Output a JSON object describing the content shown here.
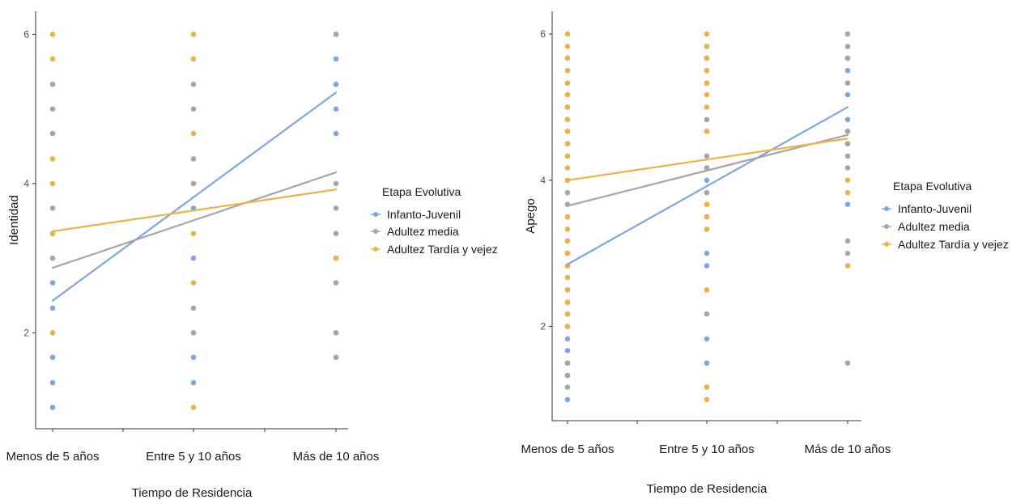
{
  "chart_data": [
    {
      "type": "scatter",
      "ylabel": "Identidad",
      "xlabel": "Tiempo de Residencia",
      "categories": [
        "Menos de 5 años",
        "Entre 5 y 10 años",
        "Más de 10 años"
      ],
      "yticks": [
        2,
        4,
        6
      ],
      "ylim": [
        0.8,
        6.2
      ],
      "grid": false,
      "legend": {
        "title": "Etapa Evolutiva",
        "placement": "right",
        "entries": [
          "Infanto-Juvenil",
          "Adultez media",
          "Adultez Tardía y vejez"
        ]
      },
      "series": [
        {
          "name": "Infanto-Juvenil",
          "color": "#7ea6e0",
          "points": [
            [
              1,
              1.0
            ],
            [
              1,
              1.33
            ],
            [
              1,
              1.67
            ],
            [
              1,
              2.33
            ],
            [
              1,
              2.67
            ],
            [
              2,
              1.33
            ],
            [
              2,
              1.67
            ],
            [
              2,
              3.0
            ],
            [
              2,
              3.67
            ],
            [
              3,
              4.67
            ],
            [
              3,
              5.0
            ],
            [
              3,
              5.33
            ],
            [
              3,
              5.67
            ],
            [
              3,
              6.0
            ]
          ],
          "trend": [
            2.43,
            5.22
          ]
        },
        {
          "name": "Adultez media",
          "color": "#a6a6a6",
          "points": [
            [
              1,
              3.0
            ],
            [
              1,
              3.33
            ],
            [
              1,
              3.67
            ],
            [
              1,
              4.67
            ],
            [
              1,
              5.0
            ],
            [
              1,
              5.33
            ],
            [
              2,
              2.0
            ],
            [
              2,
              2.33
            ],
            [
              2,
              4.0
            ],
            [
              2,
              4.33
            ],
            [
              2,
              5.0
            ],
            [
              2,
              5.33
            ],
            [
              3,
              1.67
            ],
            [
              3,
              2.0
            ],
            [
              3,
              2.67
            ],
            [
              3,
              3.0
            ],
            [
              3,
              3.33
            ],
            [
              3,
              3.67
            ],
            [
              3,
              4.0
            ],
            [
              3,
              6.0
            ]
          ],
          "trend": [
            2.87,
            4.15
          ]
        },
        {
          "name": "Adultez Tardía y vejez",
          "color": "#e8b44a",
          "points": [
            [
              1,
              2.0
            ],
            [
              1,
              3.33
            ],
            [
              1,
              4.0
            ],
            [
              1,
              4.33
            ],
            [
              1,
              5.67
            ],
            [
              1,
              6.0
            ],
            [
              2,
              1.0
            ],
            [
              2,
              2.67
            ],
            [
              2,
              3.33
            ],
            [
              2,
              4.67
            ],
            [
              2,
              5.67
            ],
            [
              2,
              6.0
            ],
            [
              3,
              3.0
            ]
          ],
          "trend": [
            3.36,
            3.92
          ]
        }
      ]
    },
    {
      "type": "scatter",
      "ylabel": "Apego",
      "xlabel": "Tiempo de Residencia",
      "categories": [
        "Menos de 5 años",
        "Entre 5 y 10 años",
        "Más de 10 años"
      ],
      "yticks": [
        2,
        4,
        6
      ],
      "ylim": [
        0.8,
        6.2
      ],
      "grid": false,
      "legend": {
        "title": "Etapa Evolutiva",
        "placement": "right",
        "entries": [
          "Infanto-Juvenil",
          "Adultez media",
          "Adultez Tardía y vejez"
        ]
      },
      "series": [
        {
          "name": "Infanto-Juvenil",
          "color": "#7ea6e0",
          "points": [
            [
              1,
              1.0
            ],
            [
              1,
              1.33
            ],
            [
              1,
              1.5
            ],
            [
              1,
              1.67
            ],
            [
              1,
              1.83
            ],
            [
              1,
              2.0
            ],
            [
              1,
              2.17
            ],
            [
              1,
              2.33
            ],
            [
              1,
              2.5
            ],
            [
              1,
              2.83
            ],
            [
              1,
              3.0
            ],
            [
              1,
              3.17
            ],
            [
              2,
              1.5
            ],
            [
              2,
              1.83
            ],
            [
              2,
              2.83
            ],
            [
              2,
              3.0
            ],
            [
              2,
              3.5
            ],
            [
              2,
              3.67
            ],
            [
              2,
              4.0
            ],
            [
              3,
              3.67
            ],
            [
              3,
              4.5
            ],
            [
              3,
              4.67
            ],
            [
              3,
              4.83
            ],
            [
              3,
              5.17
            ],
            [
              3,
              5.5
            ],
            [
              3,
              5.67
            ]
          ],
          "trend": [
            2.85,
            5.0
          ]
        },
        {
          "name": "Adultez media",
          "color": "#a6a6a6",
          "points": [
            [
              1,
              1.17
            ],
            [
              1,
              1.33
            ],
            [
              1,
              1.5
            ],
            [
              1,
              3.67
            ],
            [
              1,
              3.83
            ],
            [
              1,
              4.0
            ],
            [
              1,
              4.33
            ],
            [
              1,
              4.5
            ],
            [
              1,
              4.67
            ],
            [
              1,
              4.83
            ],
            [
              1,
              5.0
            ],
            [
              1,
              5.17
            ],
            [
              1,
              5.33
            ],
            [
              1,
              5.5
            ],
            [
              1,
              5.67
            ],
            [
              2,
              1.17
            ],
            [
              2,
              2.17
            ],
            [
              2,
              3.83
            ],
            [
              2,
              4.17
            ],
            [
              2,
              4.33
            ],
            [
              2,
              4.67
            ],
            [
              2,
              4.83
            ],
            [
              2,
              5.33
            ],
            [
              2,
              5.5
            ],
            [
              2,
              5.67
            ],
            [
              2,
              5.83
            ],
            [
              3,
              1.5
            ],
            [
              3,
              3.0
            ],
            [
              3,
              3.17
            ],
            [
              3,
              4.17
            ],
            [
              3,
              4.33
            ],
            [
              3,
              4.5
            ],
            [
              3,
              4.67
            ],
            [
              3,
              5.33
            ],
            [
              3,
              5.67
            ],
            [
              3,
              5.83
            ],
            [
              3,
              6.0
            ]
          ],
          "trend": [
            3.65,
            4.62
          ]
        },
        {
          "name": "Adultez Tardía y vejez",
          "color": "#e8b44a",
          "points": [
            [
              1,
              2.0
            ],
            [
              1,
              2.17
            ],
            [
              1,
              2.33
            ],
            [
              1,
              2.5
            ],
            [
              1,
              2.67
            ],
            [
              1,
              2.83
            ],
            [
              1,
              3.0
            ],
            [
              1,
              3.17
            ],
            [
              1,
              3.33
            ],
            [
              1,
              3.5
            ],
            [
              1,
              4.0
            ],
            [
              1,
              4.17
            ],
            [
              1,
              4.33
            ],
            [
              1,
              4.5
            ],
            [
              1,
              4.67
            ],
            [
              1,
              4.83
            ],
            [
              1,
              5.0
            ],
            [
              1,
              5.17
            ],
            [
              1,
              5.33
            ],
            [
              1,
              5.5
            ],
            [
              1,
              5.67
            ],
            [
              1,
              5.83
            ],
            [
              1,
              6.0
            ],
            [
              2,
              1.0
            ],
            [
              2,
              1.17
            ],
            [
              2,
              2.5
            ],
            [
              2,
              3.33
            ],
            [
              2,
              3.5
            ],
            [
              2,
              3.67
            ],
            [
              2,
              4.67
            ],
            [
              2,
              5.0
            ],
            [
              2,
              5.17
            ],
            [
              2,
              5.33
            ],
            [
              2,
              5.5
            ],
            [
              2,
              5.67
            ],
            [
              2,
              5.83
            ],
            [
              2,
              6.0
            ],
            [
              3,
              2.83
            ],
            [
              3,
              3.83
            ],
            [
              3,
              4.0
            ]
          ],
          "trend": [
            4.0,
            4.57
          ]
        }
      ]
    }
  ]
}
